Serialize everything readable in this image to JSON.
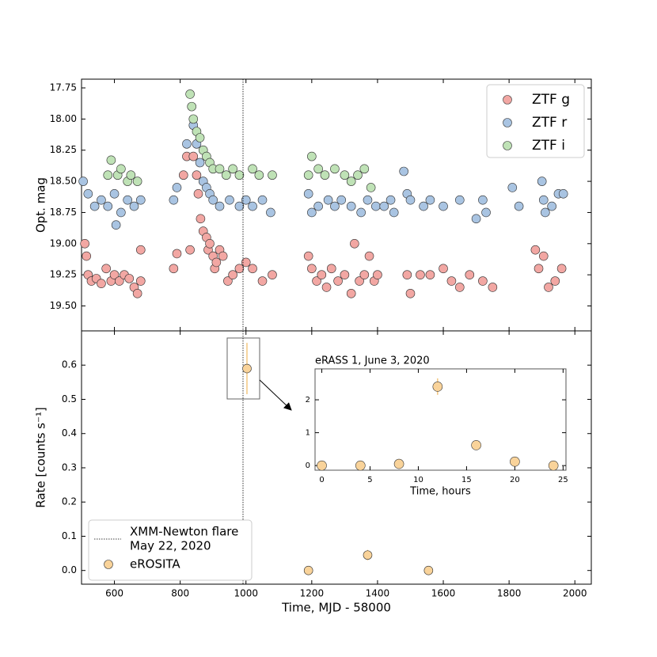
{
  "chart_data": [
    {
      "type": "scatter",
      "ylabel": "Opt. mag",
      "xlim": [
        500,
        2050
      ],
      "ylim": [
        19.7,
        17.68
      ],
      "yticks": [
        17.75,
        {
          "value": 18,
          "label": "18.00"
        },
        18.25,
        {
          "value": 18.5,
          "label": "18.50"
        },
        18.75,
        {
          "value": 19,
          "label": "19.00"
        },
        19.25,
        {
          "value": 19.5,
          "label": "19.50"
        }
      ],
      "legend": "upper right",
      "series": [
        {
          "name": "ZTF g",
          "color": "#f2a7a3",
          "x": [
            510,
            515,
            520,
            530,
            545,
            560,
            575,
            590,
            600,
            615,
            630,
            645,
            660,
            670,
            680,
            680,
            780,
            790,
            810,
            820,
            830,
            840,
            850,
            855,
            862,
            870,
            880,
            885,
            890,
            900,
            905,
            910,
            920,
            930,
            945,
            960,
            980,
            1000,
            1020,
            1050,
            1080,
            1190,
            1200,
            1215,
            1230,
            1245,
            1260,
            1280,
            1300,
            1320,
            1330,
            1345,
            1360,
            1375,
            1390,
            1400,
            1490,
            1500,
            1530,
            1560,
            1600,
            1625,
            1650,
            1680,
            1720,
            1750,
            1880,
            1890,
            1905,
            1920,
            1940,
            1960
          ],
          "y": [
            19.0,
            19.1,
            19.25,
            19.3,
            19.28,
            19.32,
            19.2,
            19.3,
            19.25,
            19.3,
            19.25,
            19.28,
            19.35,
            19.4,
            19.05,
            19.3,
            19.2,
            19.08,
            18.45,
            18.3,
            19.05,
            18.3,
            18.45,
            18.6,
            18.8,
            18.9,
            18.95,
            19.05,
            19.0,
            19.1,
            19.2,
            19.15,
            19.05,
            19.1,
            19.3,
            19.25,
            19.2,
            19.15,
            19.2,
            19.3,
            19.25,
            19.1,
            19.2,
            19.3,
            19.25,
            19.35,
            19.2,
            19.3,
            19.25,
            19.4,
            19.0,
            19.3,
            19.25,
            19.1,
            19.3,
            19.25,
            19.25,
            19.4,
            19.25,
            19.25,
            19.2,
            19.3,
            19.35,
            19.25,
            19.3,
            19.35,
            19.05,
            19.2,
            19.1,
            19.35,
            19.3,
            19.2
          ]
        },
        {
          "name": "ZTF r",
          "color": "#a9c4e2",
          "x": [
            505,
            520,
            540,
            560,
            580,
            600,
            605,
            620,
            640,
            660,
            680,
            780,
            790,
            820,
            840,
            850,
            860,
            870,
            880,
            890,
            900,
            920,
            950,
            980,
            1000,
            1020,
            1050,
            1075,
            1190,
            1200,
            1220,
            1250,
            1270,
            1290,
            1320,
            1350,
            1370,
            1395,
            1420,
            1440,
            1450,
            1480,
            1490,
            1500,
            1540,
            1560,
            1600,
            1650,
            1700,
            1720,
            1730,
            1810,
            1830,
            1900,
            1905,
            1910,
            1930,
            1950,
            1965
          ],
          "y": [
            18.5,
            18.6,
            18.7,
            18.65,
            18.7,
            18.6,
            18.85,
            18.75,
            18.65,
            18.7,
            18.65,
            18.65,
            18.55,
            18.2,
            18.05,
            18.2,
            18.35,
            18.5,
            18.55,
            18.6,
            18.65,
            18.7,
            18.65,
            18.7,
            18.65,
            18.7,
            18.65,
            18.75,
            18.6,
            18.75,
            18.7,
            18.65,
            18.7,
            18.65,
            18.7,
            18.75,
            18.65,
            18.7,
            18.7,
            18.65,
            18.75,
            18.42,
            18.6,
            18.65,
            18.7,
            18.65,
            18.7,
            18.65,
            18.8,
            18.65,
            18.75,
            18.55,
            18.7,
            18.5,
            18.65,
            18.75,
            18.7,
            18.6,
            18.6
          ]
        },
        {
          "name": "ZTF i",
          "color": "#bfe2b6",
          "x": [
            580,
            590,
            610,
            620,
            640,
            650,
            670,
            830,
            835,
            840,
            850,
            860,
            870,
            880,
            890,
            900,
            920,
            940,
            960,
            980,
            1020,
            1040,
            1080,
            1190,
            1200,
            1220,
            1240,
            1270,
            1300,
            1320,
            1340,
            1360,
            1380
          ],
          "y": [
            18.45,
            18.33,
            18.45,
            18.4,
            18.5,
            18.45,
            18.5,
            17.8,
            17.9,
            18.0,
            18.1,
            18.15,
            18.25,
            18.3,
            18.35,
            18.4,
            18.4,
            18.45,
            18.4,
            18.45,
            18.4,
            18.45,
            18.45,
            18.45,
            18.3,
            18.4,
            18.45,
            18.4,
            18.45,
            18.5,
            18.45,
            18.4,
            18.55
          ]
        }
      ]
    },
    {
      "type": "scatter",
      "xlabel": "Time, MJD - 58000",
      "ylabel": "Rate [counts s⁻¹]",
      "xlim": [
        500,
        2050
      ],
      "ylim": [
        -0.04,
        0.7
      ],
      "xticks": [
        600,
        800,
        1000,
        1200,
        1400,
        1600,
        1800,
        2000
      ],
      "yticks": [
        {
          "value": 0,
          "label": "0.0"
        },
        0.1,
        0.2,
        0.3,
        0.4,
        0.5,
        0.6
      ],
      "legend": "lower left",
      "vline": {
        "x": 991,
        "label": [
          "XMM-Newton flare",
          "May 22, 2020"
        ]
      },
      "series": [
        {
          "name": "eROSITA",
          "color": "#f9d39a",
          "x": [
            1003,
            1190,
            1370,
            1555
          ],
          "y": [
            0.59,
            0.0,
            0.045,
            0.0
          ],
          "yerr": [
            0.075,
            0.005,
            0.015,
            0.005
          ]
        }
      ]
    },
    {
      "type": "scatter",
      "title": "eRASS 1, June 3, 2020",
      "xlabel": "Time, hours",
      "xlim": [
        -0.7,
        25.3
      ],
      "ylim": [
        -0.14,
        2.94
      ],
      "xticks": [
        0,
        5,
        10,
        15,
        20,
        25
      ],
      "yticks": [
        0,
        1,
        2
      ],
      "series": [
        {
          "color": "#f9d39a",
          "x": [
            0,
            4,
            8,
            12,
            16,
            20,
            24
          ],
          "y": [
            0,
            0,
            0.05,
            2.4,
            0.62,
            0.12,
            0
          ],
          "yerr": [
            0.05,
            0.05,
            0.08,
            0.25,
            0.1,
            0.06,
            0.05
          ]
        }
      ]
    }
  ]
}
